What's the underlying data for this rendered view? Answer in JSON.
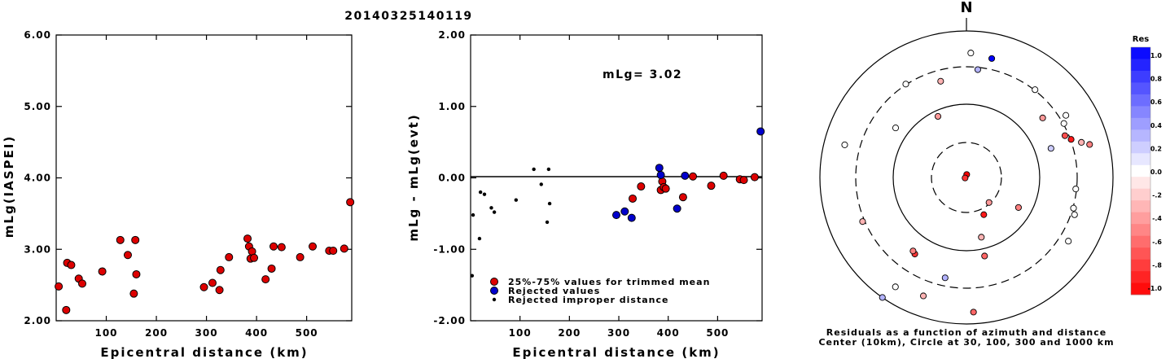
{
  "title": "20140325140119",
  "colors": {
    "kept": "#dd0000",
    "rejected": "#0000cc",
    "improper": "#000000"
  },
  "chart_data": [
    {
      "id": "left",
      "type": "scatter",
      "xlabel": "Epicentral distance (km)",
      "ylabel": "mLg(IASPEI)",
      "xlim": [
        0,
        590
      ],
      "ylim": [
        2.0,
        6.0
      ],
      "xticks": [
        100,
        200,
        300,
        400,
        500
      ],
      "yticks": [
        "2.00",
        "3.00",
        "4.00",
        "5.00",
        "6.00"
      ],
      "series": [
        {
          "role": "kept",
          "points": [
            [
              5,
              2.48
            ],
            [
              20,
              2.15
            ],
            [
              22,
              2.81
            ],
            [
              30,
              2.78
            ],
            [
              45,
              2.59
            ],
            [
              52,
              2.52
            ],
            [
              92,
              2.69
            ],
            [
              128,
              3.13
            ],
            [
              143,
              2.92
            ],
            [
              155,
              2.38
            ],
            [
              158,
              3.13
            ],
            [
              160,
              2.65
            ],
            [
              295,
              2.47
            ],
            [
              312,
              2.53
            ],
            [
              326,
              2.43
            ],
            [
              328,
              2.71
            ],
            [
              345,
              2.89
            ],
            [
              382,
              3.15
            ],
            [
              385,
              3.04
            ],
            [
              388,
              2.87
            ],
            [
              391,
              2.97
            ],
            [
              395,
              2.88
            ],
            [
              418,
              2.58
            ],
            [
              430,
              2.73
            ],
            [
              434,
              3.04
            ],
            [
              450,
              3.03
            ],
            [
              487,
              2.89
            ],
            [
              512,
              3.04
            ],
            [
              545,
              2.98
            ],
            [
              553,
              2.98
            ],
            [
              575,
              3.01
            ],
            [
              587,
              3.66
            ]
          ]
        }
      ]
    },
    {
      "id": "middle",
      "type": "scatter",
      "xlabel": "Epicentral distance (km)",
      "ylabel": "mLg - mLg(evt)",
      "annotation": "mLg= 3.02",
      "xlim": [
        0,
        590
      ],
      "ylim": [
        -2.0,
        2.0
      ],
      "xticks": [
        100,
        200,
        300,
        400,
        500
      ],
      "yticks": [
        "-2.00",
        "-1.00",
        "0.00",
        "1.00",
        "2.00"
      ],
      "legend": [
        "25%-75% values for trimmed mean",
        "Rejected values",
        "Rejected improper distance"
      ],
      "series": [
        {
          "role": "kept",
          "points": [
            [
              328,
              -0.29
            ],
            [
              345,
              -0.12
            ],
            [
              385,
              -0.17
            ],
            [
              388,
              -0.05
            ],
            [
              391,
              -0.13
            ],
            [
              395,
              -0.15
            ],
            [
              430,
              -0.27
            ],
            [
              450,
              0.02
            ],
            [
              487,
              -0.11
            ],
            [
              512,
              0.03
            ],
            [
              545,
              -0.02
            ],
            [
              553,
              -0.03
            ],
            [
              575,
              0.01
            ]
          ]
        },
        {
          "role": "rejected",
          "points": [
            [
              295,
              -0.52
            ],
            [
              312,
              -0.47
            ],
            [
              326,
              -0.56
            ],
            [
              382,
              0.14
            ],
            [
              385,
              0.04
            ],
            [
              418,
              -0.43
            ],
            [
              434,
              0.03
            ],
            [
              587,
              0.65
            ]
          ]
        },
        {
          "role": "improper",
          "points": [
            [
              3,
              -1.37
            ],
            [
              5,
              -0.52
            ],
            [
              18,
              -0.85
            ],
            [
              20,
              -0.2
            ],
            [
              28,
              -0.23
            ],
            [
              42,
              -0.42
            ],
            [
              48,
              -0.48
            ],
            [
              92,
              -0.31
            ],
            [
              128,
              0.12
            ],
            [
              143,
              -0.09
            ],
            [
              155,
              -0.62
            ],
            [
              158,
              0.12
            ],
            [
              160,
              -0.36
            ]
          ]
        }
      ]
    },
    {
      "id": "polar",
      "type": "scatter",
      "top_label": "N",
      "caption_1": "Residuals as a function of azimuth and distance",
      "caption_2": "Center (10km), Circle at 30, 100, 300 and 1000 km",
      "circles_km": [
        30,
        100,
        300,
        1000
      ],
      "points": [
        {
          "az": 5,
          "r": 0.02,
          "res": -1.0
        },
        {
          "az": 250,
          "r": 0.01,
          "res": -0.8
        },
        {
          "az": 138,
          "r": 0.23,
          "res": -0.4
        },
        {
          "az": 155,
          "r": 0.28,
          "res": -0.9
        },
        {
          "az": 120,
          "r": 0.41,
          "res": -0.5
        },
        {
          "az": 166,
          "r": 0.42,
          "res": -0.3
        },
        {
          "az": 167,
          "r": 0.55,
          "res": -0.6
        },
        {
          "az": 192,
          "r": 0.7,
          "res": 0.3
        },
        {
          "az": 214,
          "r": 0.63,
          "res": -0.8
        },
        {
          "az": 216,
          "r": 0.62,
          "res": -0.5
        },
        {
          "az": 200,
          "r": 0.86,
          "res": -0.3
        },
        {
          "az": 213,
          "r": 0.89,
          "res": 0.0
        },
        {
          "az": 215,
          "r": 1.0,
          "res": 0.3
        },
        {
          "az": 177,
          "r": 0.92,
          "res": -0.6
        },
        {
          "az": 247,
          "r": 0.77,
          "res": -0.3
        },
        {
          "az": 285,
          "r": 0.86,
          "res": 0.0
        },
        {
          "az": 305,
          "r": 0.59,
          "res": 0.0
        },
        {
          "az": 327,
          "r": 0.76,
          "res": 0.0
        },
        {
          "az": 335,
          "r": 0.46,
          "res": -0.4
        },
        {
          "az": 345,
          "r": 0.68,
          "res": -0.3
        },
        {
          "az": 2,
          "r": 0.85,
          "res": 0.0
        },
        {
          "az": 6,
          "r": 0.74,
          "res": 0.3
        },
        {
          "az": 12,
          "r": 0.83,
          "res": 1.0
        },
        {
          "az": 38,
          "r": 0.76,
          "res": 0.0
        },
        {
          "az": 52,
          "r": 0.66,
          "res": -0.4
        },
        {
          "az": 58,
          "r": 0.8,
          "res": 0.0
        },
        {
          "az": 61,
          "r": 0.76,
          "res": 0.0
        },
        {
          "az": 67,
          "r": 0.73,
          "res": -0.7
        },
        {
          "az": 70,
          "r": 0.76,
          "res": -0.9
        },
        {
          "az": 73,
          "r": 0.82,
          "res": -0.3
        },
        {
          "az": 75,
          "r": 0.87,
          "res": -0.5
        },
        {
          "az": 71,
          "r": 0.61,
          "res": 0.2
        },
        {
          "az": 96,
          "r": 0.75,
          "res": 0.0
        },
        {
          "az": 106,
          "r": 0.76,
          "res": 0.0
        },
        {
          "az": 109,
          "r": 0.78,
          "res": 0.0
        },
        {
          "az": 122,
          "r": 0.82,
          "res": 0.0
        }
      ]
    }
  ],
  "colorbar": {
    "title": "Res",
    "labels": [
      "1.0",
      "0.8",
      "0.6",
      "0.4",
      "0.2",
      "0.0",
      "-.2",
      "-.4",
      "-.6",
      "-.8",
      "-1.0"
    ]
  }
}
